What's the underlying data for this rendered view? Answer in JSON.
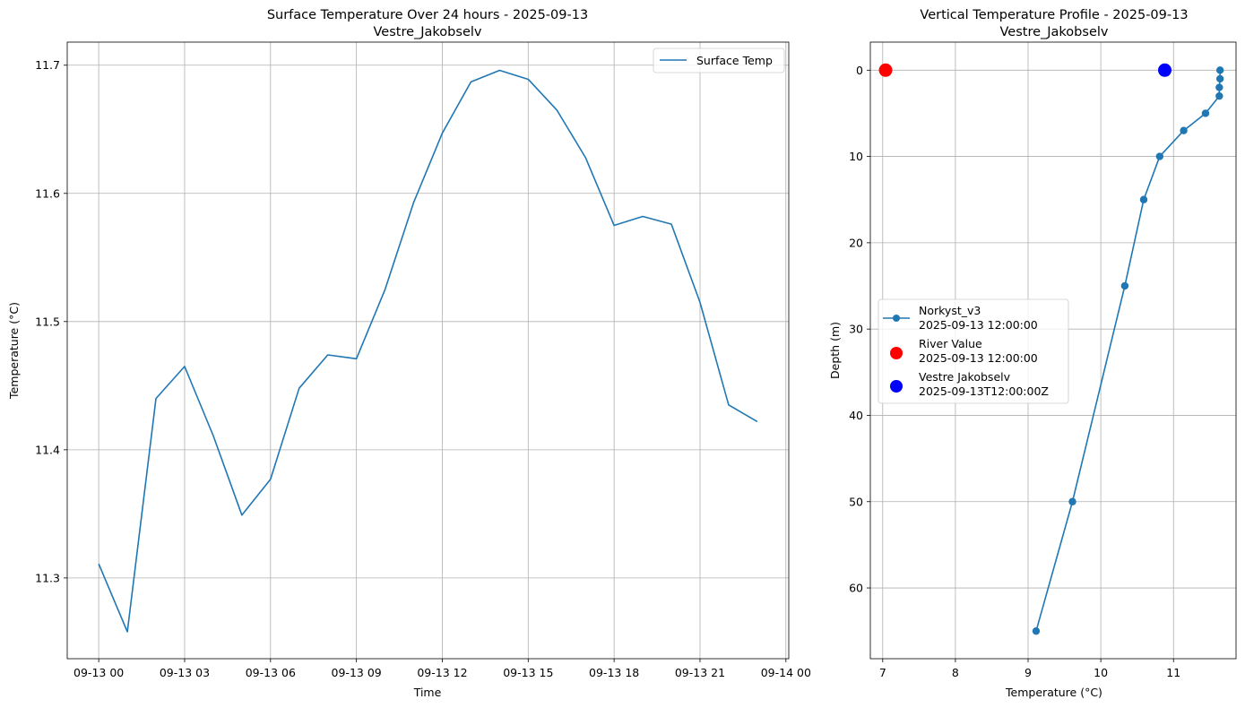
{
  "chart_data": [
    {
      "type": "line",
      "title": "Surface Temperature Over 24 hours - 2025-09-13",
      "subtitle": "Vestre_Jakobselv",
      "xlabel": "Time",
      "ylabel": "Temperature (°C)",
      "x_ticks": [
        "09-13 00",
        "09-13 03",
        "09-13 06",
        "09-13 09",
        "09-13 12",
        "09-13 15",
        "09-13 18",
        "09-13 21",
        "09-14 00"
      ],
      "y_ticks": [
        "11.3",
        "11.4",
        "11.5",
        "11.6",
        "11.7"
      ],
      "xlim": [
        "2025-09-12T22:54",
        "2025-09-14T00:06"
      ],
      "ylim": [
        11.237,
        11.718
      ],
      "grid": true,
      "legend_position": "top-right",
      "series": [
        {
          "name": "Surface Temp",
          "color": "#1f77b4",
          "x": [
            "2025-09-13T00:00",
            "2025-09-13T01:00",
            "2025-09-13T02:00",
            "2025-09-13T03:00",
            "2025-09-13T04:00",
            "2025-09-13T05:00",
            "2025-09-13T06:00",
            "2025-09-13T07:00",
            "2025-09-13T08:00",
            "2025-09-13T09:00",
            "2025-09-13T10:00",
            "2025-09-13T11:00",
            "2025-09-13T12:00",
            "2025-09-13T13:00",
            "2025-09-13T14:00",
            "2025-09-13T15:00",
            "2025-09-13T16:00",
            "2025-09-13T17:00",
            "2025-09-13T18:00",
            "2025-09-13T19:00",
            "2025-09-13T20:00",
            "2025-09-13T21:00",
            "2025-09-13T22:00",
            "2025-09-13T23:00"
          ],
          "values": [
            11.311,
            11.258,
            11.44,
            11.465,
            11.411,
            11.349,
            11.377,
            11.448,
            11.474,
            11.471,
            11.525,
            11.593,
            11.647,
            11.687,
            11.696,
            11.689,
            11.665,
            11.628,
            11.575,
            11.582,
            11.576,
            11.515,
            11.435,
            11.422
          ]
        }
      ]
    },
    {
      "type": "line",
      "title": "Vertical Temperature Profile - 2025-09-13",
      "subtitle": "Vestre_Jakobselv",
      "xlabel": "Temperature (°C)",
      "ylabel": "Depth (m)",
      "x_ticks": [
        "7",
        "8",
        "9",
        "10",
        "11"
      ],
      "y_ticks": [
        "0",
        "10",
        "20",
        "30",
        "40",
        "50",
        "60"
      ],
      "xlim": [
        6.83,
        11.86
      ],
      "ylim": [
        68.2,
        -3.25
      ],
      "y_inverted": true,
      "grid": true,
      "legend_position": "center-left",
      "series": [
        {
          "name": "Norkyst_v3",
          "name_line2": "2025-09-13 12:00:00",
          "color": "#1f77b4",
          "marker": "circle",
          "x": [
            11.64,
            11.64,
            11.63,
            11.63,
            11.44,
            11.14,
            10.81,
            10.59,
            10.33,
            9.61,
            9.11
          ],
          "y": [
            0,
            1,
            2,
            3,
            5,
            7,
            10,
            15,
            25,
            50,
            65
          ]
        },
        {
          "name": "River Value",
          "name_line2": "2025-09-13 12:00:00",
          "color": "#ff0000",
          "marker": "circle-large",
          "x": [
            7.04
          ],
          "y": [
            0
          ]
        },
        {
          "name": "Vestre Jakobselv",
          "name_line2": "2025-09-13T12:00:00Z",
          "color": "#0000ff",
          "marker": "circle-large",
          "x": [
            10.88
          ],
          "y": [
            0
          ]
        }
      ]
    }
  ]
}
